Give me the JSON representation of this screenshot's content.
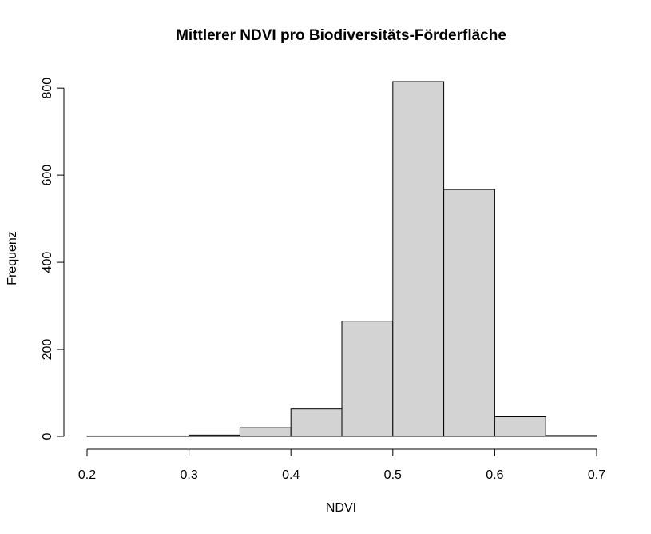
{
  "chart_data": {
    "type": "bar",
    "title": "Mittlerer NDVI pro Biodiversitäts-Förderfläche",
    "xlabel": "NDVI",
    "ylabel": "Frequenz",
    "bins": [
      [
        0.2,
        0.25
      ],
      [
        0.25,
        0.3
      ],
      [
        0.3,
        0.35
      ],
      [
        0.35,
        0.4
      ],
      [
        0.4,
        0.45
      ],
      [
        0.45,
        0.5
      ],
      [
        0.5,
        0.55
      ],
      [
        0.55,
        0.6
      ],
      [
        0.6,
        0.65
      ],
      [
        0.65,
        0.7
      ]
    ],
    "values": [
      1,
      1,
      3,
      20,
      63,
      265,
      815,
      567,
      45,
      2
    ],
    "xlim": [
      0.2,
      0.7
    ],
    "ylim": [
      0,
      815
    ],
    "x_ticks": [
      0.2,
      0.3,
      0.4,
      0.5,
      0.6,
      0.7
    ],
    "x_tick_labels": [
      "0.2",
      "0.3",
      "0.4",
      "0.5",
      "0.6",
      "0.7"
    ],
    "y_ticks": [
      0,
      200,
      400,
      600,
      800
    ],
    "y_tick_labels": [
      "0",
      "200",
      "400",
      "600",
      "800"
    ],
    "bar_fill": "#d3d3d3",
    "bar_stroke": "#000000",
    "grid": false
  }
}
